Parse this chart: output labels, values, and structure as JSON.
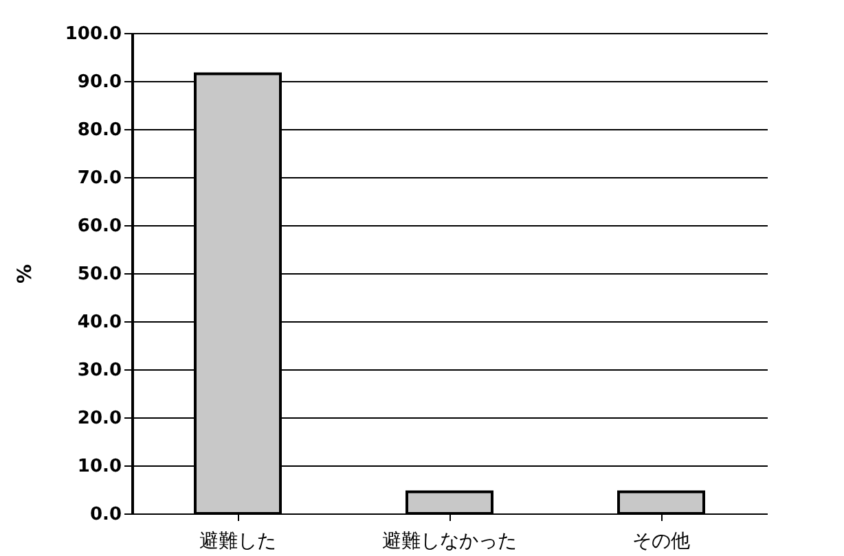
{
  "chart_data": {
    "type": "bar",
    "ylabel": "%",
    "categories": [
      "避難した",
      "避難しなかった",
      "その他"
    ],
    "values": [
      91.5,
      4.5,
      4.5
    ],
    "color": "#c8c8c8",
    "ylim": [
      0,
      100
    ],
    "yticks": [
      {
        "value": 0,
        "label": "0.0"
      },
      {
        "value": 10,
        "label": "10.0"
      },
      {
        "value": 20,
        "label": "20.0"
      },
      {
        "value": 30,
        "label": "30.0"
      },
      {
        "value": 40,
        "label": "40.0"
      },
      {
        "value": 50,
        "label": "50.0"
      },
      {
        "value": 60,
        "label": "60.0"
      },
      {
        "value": 70,
        "label": "70.0"
      },
      {
        "value": 80,
        "label": "80.0"
      },
      {
        "value": 90,
        "label": "90.0"
      },
      {
        "value": 100,
        "label": "100.0"
      }
    ],
    "grid": "y"
  }
}
